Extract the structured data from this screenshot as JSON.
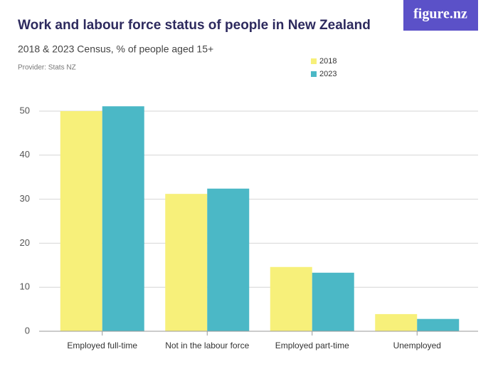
{
  "brand": "figure.nz",
  "chart_data": {
    "type": "bar",
    "title": "Work and labour force status of people in New Zealand",
    "subtitle": "2018 & 2023 Census, % of people aged 15+",
    "provider": "Provider: Stats NZ",
    "categories": [
      "Employed full-time",
      "Not in the labour force",
      "Employed part-time",
      "Unemployed"
    ],
    "series": [
      {
        "name": "2018",
        "color": "#f7f07a",
        "values": [
          50.0,
          31.2,
          14.6,
          3.9
        ]
      },
      {
        "name": "2023",
        "color": "#4bb8c6",
        "values": [
          51.1,
          32.4,
          13.3,
          2.8
        ]
      }
    ],
    "ylim": [
      0,
      50
    ],
    "yticks": [
      0,
      10,
      20,
      30,
      40,
      50
    ],
    "grid": true
  }
}
